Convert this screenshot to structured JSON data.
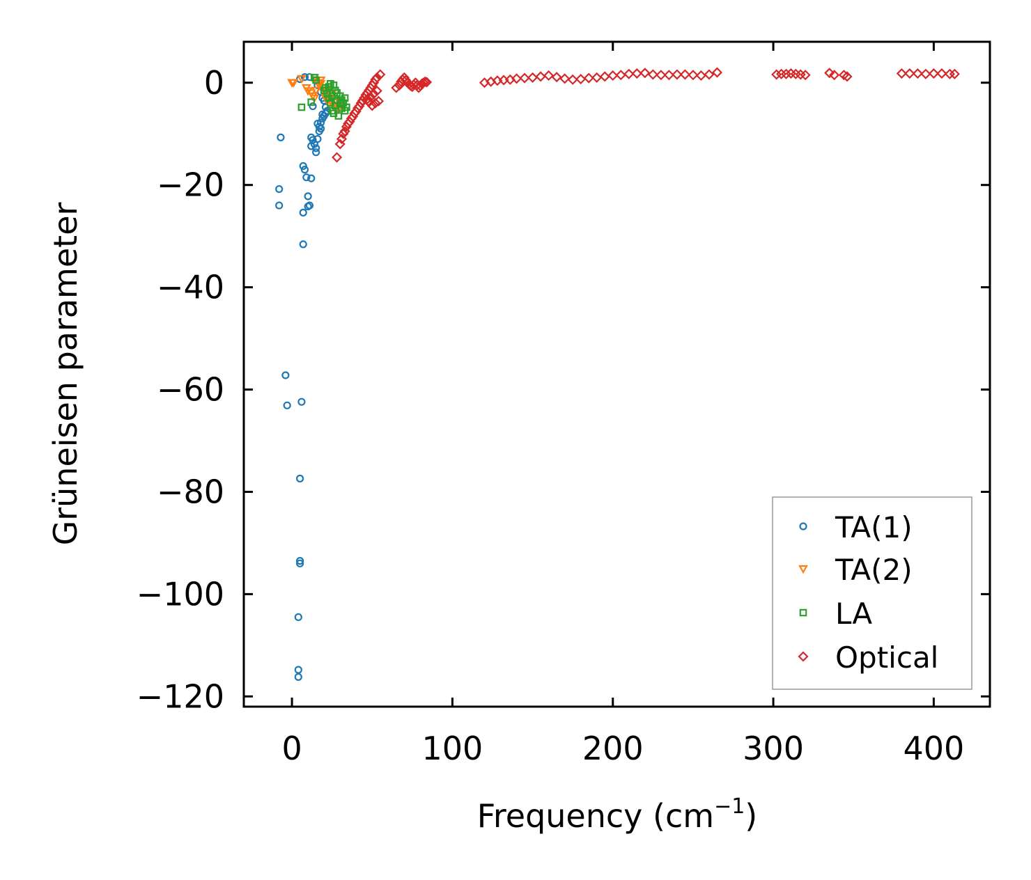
{
  "chart_data": {
    "type": "scatter",
    "title": "",
    "xlabel": "Frequency (cm",
    "xlabel_sup": "−1",
    "xlabel_close": ")",
    "ylabel": "Grüneisen parameter",
    "xlim": [
      -30,
      435
    ],
    "ylim": [
      -122,
      8
    ],
    "xticks": [
      0,
      100,
      200,
      300,
      400
    ],
    "xtick_labels": [
      "0",
      "100",
      "200",
      "300",
      "400"
    ],
    "yticks": [
      0,
      -20,
      -40,
      -60,
      -80,
      -100,
      -120
    ],
    "ytick_labels": [
      "0",
      "−20",
      "−40",
      "−60",
      "−80",
      "−100",
      "−120"
    ],
    "grid": false,
    "legend_position": "lower-right",
    "series": [
      {
        "name": "TA(1)",
        "marker": "circle",
        "color": "#1f77b4",
        "points": [
          [
            -7,
            -10.7
          ],
          [
            -8,
            -20.8
          ],
          [
            -8,
            -24
          ],
          [
            -4,
            -57.2
          ],
          [
            -3,
            -63.1
          ],
          [
            6,
            -62.4
          ],
          [
            5,
            -77.4
          ],
          [
            5,
            -93.5
          ],
          [
            5,
            -94
          ],
          [
            4,
            -104.5
          ],
          [
            4,
            -114.8
          ],
          [
            4,
            -116.2
          ],
          [
            7,
            -16.3
          ],
          [
            8,
            -17
          ],
          [
            9,
            -18.5
          ],
          [
            12,
            -18.7
          ],
          [
            10,
            -22.2
          ],
          [
            11,
            -24
          ],
          [
            10,
            -24.2
          ],
          [
            7,
            -25.4
          ],
          [
            7,
            -31.6
          ],
          [
            12,
            -10.7
          ],
          [
            13,
            -11.2
          ],
          [
            12,
            -12.4
          ],
          [
            14,
            -12
          ],
          [
            15,
            -12.8
          ],
          [
            15,
            -13.6
          ],
          [
            16,
            -11
          ],
          [
            17,
            -9.5
          ],
          [
            17,
            -8.6
          ],
          [
            18,
            -7.8
          ],
          [
            19,
            -7
          ],
          [
            20,
            -6.5
          ],
          [
            21,
            -6
          ],
          [
            22,
            -5.6
          ],
          [
            13,
            -4.6
          ],
          [
            15,
            0.5
          ],
          [
            16,
            -0.5
          ],
          [
            18,
            -1.8
          ],
          [
            19,
            -3
          ],
          [
            20,
            -3.5
          ],
          [
            11,
            1.1
          ],
          [
            8,
            1.1
          ],
          [
            5,
            0.7
          ],
          [
            16,
            -8
          ],
          [
            18,
            -9
          ],
          [
            19,
            -6.2
          ],
          [
            21,
            -4.8
          ],
          [
            22,
            -5.5
          ]
        ]
      },
      {
        "name": "TA(2)",
        "marker": "triangle-down",
        "color": "#ff7f0e",
        "points": [
          [
            0,
            0
          ],
          [
            1,
            0
          ],
          [
            6,
            0.8
          ],
          [
            9,
            -1
          ],
          [
            10,
            -1.6
          ],
          [
            12,
            -2
          ],
          [
            13,
            -2.6
          ],
          [
            14,
            -3
          ],
          [
            15,
            -1.5
          ],
          [
            16,
            0
          ],
          [
            17,
            -0.5
          ],
          [
            18,
            0.5
          ],
          [
            19,
            -1
          ],
          [
            20,
            -2
          ],
          [
            21,
            -3
          ],
          [
            22,
            -3.5
          ],
          [
            23,
            -4
          ],
          [
            24,
            -3.6
          ],
          [
            25,
            -3
          ],
          [
            26,
            -4.5
          ],
          [
            27,
            -5
          ],
          [
            28,
            -3.8
          ],
          [
            29,
            -5.2
          ],
          [
            30,
            -4
          ],
          [
            14,
            1
          ],
          [
            18,
            -0.2
          ],
          [
            22,
            -1.5
          ],
          [
            25,
            -2.2
          ]
        ]
      },
      {
        "name": "LA",
        "marker": "square",
        "color": "#2ca02c",
        "points": [
          [
            6,
            -4.8
          ],
          [
            12,
            -3.8
          ],
          [
            14,
            1
          ],
          [
            15,
            0.5
          ],
          [
            20,
            -1.5
          ],
          [
            22,
            -2.2
          ],
          [
            23,
            -3
          ],
          [
            24,
            -4
          ],
          [
            25,
            -5.5
          ],
          [
            26,
            -6
          ],
          [
            27,
            -4.5
          ],
          [
            28,
            -3.5
          ],
          [
            29,
            -6.5
          ],
          [
            30,
            -4.2
          ],
          [
            31,
            -5
          ],
          [
            32,
            -4
          ],
          [
            33,
            -3
          ],
          [
            33,
            -5.5
          ],
          [
            34,
            -4.8
          ],
          [
            26,
            -0.5
          ],
          [
            27,
            -1.5
          ],
          [
            24,
            -0.2
          ],
          [
            21,
            -1
          ],
          [
            23,
            -0.8
          ],
          [
            28,
            -2
          ],
          [
            30,
            -2.6
          ],
          [
            31,
            -3.4
          ],
          [
            25,
            -2.6
          ]
        ]
      },
      {
        "name": "Optical",
        "marker": "diamond",
        "color": "#d62728",
        "points": [
          [
            28,
            -14.6
          ],
          [
            30,
            -12
          ],
          [
            31,
            -11
          ],
          [
            32,
            -10
          ],
          [
            33,
            -9.5
          ],
          [
            34,
            -8.6
          ],
          [
            35,
            -8
          ],
          [
            36,
            -7.6
          ],
          [
            37,
            -7
          ],
          [
            38,
            -6.6
          ],
          [
            39,
            -6
          ],
          [
            40,
            -5.6
          ],
          [
            41,
            -5
          ],
          [
            42,
            -4.6
          ],
          [
            43,
            -4
          ],
          [
            44,
            -3.5
          ],
          [
            45,
            -3
          ],
          [
            46,
            -2.4
          ],
          [
            47,
            -2
          ],
          [
            48,
            -1.5
          ],
          [
            49,
            -1
          ],
          [
            50,
            -0.5
          ],
          [
            51,
            0
          ],
          [
            52,
            0.6
          ],
          [
            53,
            1
          ],
          [
            55,
            1.6
          ],
          [
            47,
            -3.2
          ],
          [
            48,
            -3.8
          ],
          [
            50,
            -4.5
          ],
          [
            52,
            -4
          ],
          [
            54,
            -3.6
          ],
          [
            49,
            -2.8
          ],
          [
            51,
            -2.2
          ],
          [
            53,
            -1.6
          ],
          [
            65,
            -1
          ],
          [
            67,
            -0.5
          ],
          [
            68,
            0.2
          ],
          [
            69,
            0.6
          ],
          [
            70,
            1
          ],
          [
            71,
            0.5
          ],
          [
            72,
            0
          ],
          [
            73,
            -0.3
          ],
          [
            74,
            -0.6
          ],
          [
            75,
            -0.8
          ],
          [
            76,
            -0.4
          ],
          [
            77,
            0
          ],
          [
            78,
            -0.5
          ],
          [
            79,
            -1
          ],
          [
            80,
            -0.6
          ],
          [
            81,
            -0.2
          ],
          [
            82,
            0
          ],
          [
            83,
            0.2
          ],
          [
            84,
            0.1
          ],
          [
            120,
            0
          ],
          [
            124,
            0.2
          ],
          [
            128,
            0.4
          ],
          [
            132,
            0.5
          ],
          [
            136,
            0.6
          ],
          [
            140,
            0.8
          ],
          [
            145,
            0.9
          ],
          [
            150,
            1
          ],
          [
            155,
            1.2
          ],
          [
            160,
            1.4
          ],
          [
            165,
            1.1
          ],
          [
            170,
            0.8
          ],
          [
            175,
            0.6
          ],
          [
            180,
            0.7
          ],
          [
            185,
            0.9
          ],
          [
            190,
            1
          ],
          [
            195,
            1.2
          ],
          [
            200,
            1.4
          ],
          [
            205,
            1.5
          ],
          [
            210,
            1.7
          ],
          [
            215,
            1.8
          ],
          [
            220,
            1.9
          ],
          [
            225,
            1.6
          ],
          [
            230,
            1.5
          ],
          [
            235,
            1.5
          ],
          [
            240,
            1.6
          ],
          [
            245,
            1.6
          ],
          [
            250,
            1.5
          ],
          [
            255,
            1.4
          ],
          [
            260,
            1.6
          ],
          [
            265,
            2
          ],
          [
            302,
            1.6
          ],
          [
            305,
            1.7
          ],
          [
            308,
            1.7
          ],
          [
            311,
            1.8
          ],
          [
            314,
            1.7
          ],
          [
            317,
            1.6
          ],
          [
            320,
            1.5
          ],
          [
            335,
            1.9
          ],
          [
            338,
            1.5
          ],
          [
            344,
            1.5
          ],
          [
            346,
            1.2
          ],
          [
            380,
            1.8
          ],
          [
            385,
            1.8
          ],
          [
            390,
            1.8
          ],
          [
            395,
            1.7
          ],
          [
            400,
            1.8
          ],
          [
            405,
            1.8
          ],
          [
            410,
            1.7
          ],
          [
            413,
            1.7
          ]
        ]
      }
    ]
  }
}
